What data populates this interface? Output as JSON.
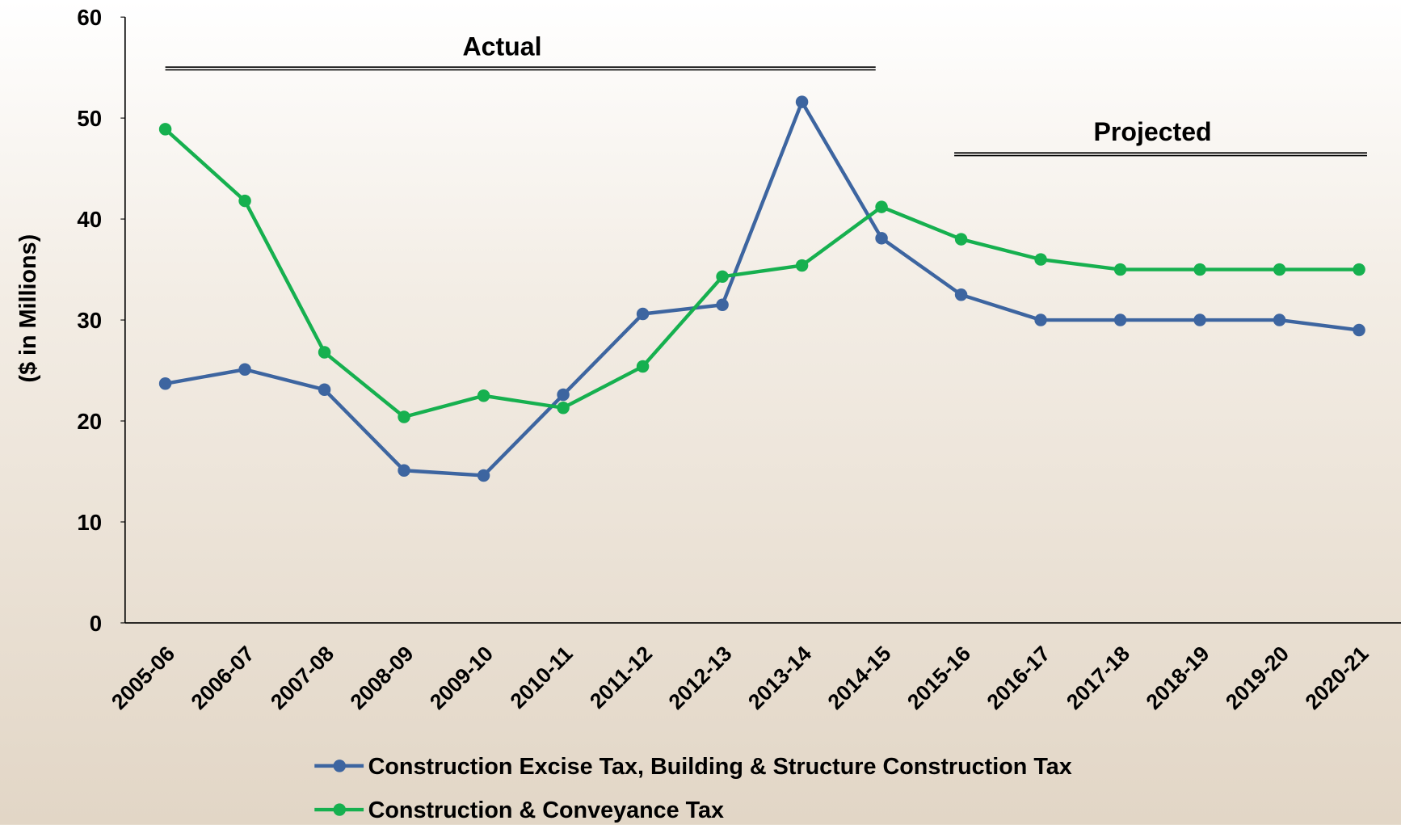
{
  "chart_data": {
    "type": "line",
    "y_label": "($ in Millions)",
    "annotations": [
      "Actual",
      "Projected"
    ],
    "categories": [
      "2005-06",
      "2006-07",
      "2007-08",
      "2008-09",
      "2009-10",
      "2010-11",
      "2011-12",
      "2012-13",
      "2013-14",
      "2014-15",
      "2015-16",
      "2016-17",
      "2017-18",
      "2018-19",
      "2019-20",
      "2020-21"
    ],
    "series": [
      {
        "name": "Construction Excise Tax, Building & Structure Construction Tax",
        "color": "#3d65a0",
        "values": [
          23.7,
          25.1,
          23.1,
          15.1,
          14.6,
          22.6,
          30.6,
          31.5,
          51.6,
          38.1,
          32.5,
          30,
          30,
          30,
          30,
          29
        ]
      },
      {
        "name": "Construction & Conveyance Tax",
        "color": "#16b04f",
        "values": [
          48.9,
          41.8,
          26.8,
          20.4,
          22.5,
          21.3,
          25.4,
          34.3,
          35.4,
          41.2,
          38,
          36,
          35,
          35,
          35,
          35
        ]
      }
    ],
    "ylim": [
      0,
      60
    ],
    "yticks": [
      0,
      10,
      20,
      30,
      40,
      50,
      60
    ]
  }
}
